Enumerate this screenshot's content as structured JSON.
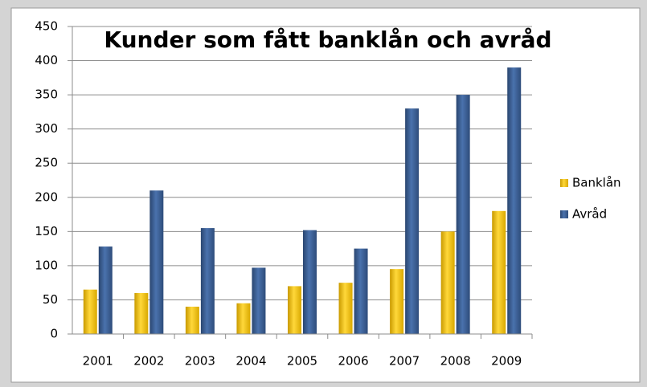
{
  "chart_data": {
    "type": "bar",
    "title": "Kunder som fått banklån och avråd",
    "categories": [
      "2001",
      "2002",
      "2003",
      "2004",
      "2005",
      "2006",
      "2007",
      "2008",
      "2009"
    ],
    "series": [
      {
        "name": "Banklån",
        "color": "#f2c200",
        "values": [
          65,
          60,
          40,
          45,
          70,
          75,
          95,
          150,
          180
        ]
      },
      {
        "name": "Avråd",
        "color": "#3b5f94",
        "values": [
          128,
          210,
          155,
          97,
          152,
          125,
          330,
          350,
          390
        ]
      }
    ],
    "ylim": [
      0,
      450
    ],
    "yticks": [
      0,
      50,
      100,
      150,
      200,
      250,
      300,
      350,
      400,
      450
    ],
    "grid": true,
    "legend": "right"
  }
}
